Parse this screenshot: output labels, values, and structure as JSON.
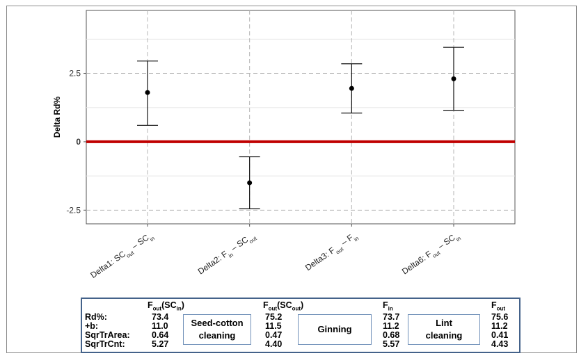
{
  "chart_data": {
    "type": "errorbar",
    "ylabel": "Delta Rd%",
    "ylim": [
      -3.0,
      4.8
    ],
    "yticks": [
      -2.5,
      0,
      2.5
    ],
    "ytick_labels": [
      "-2.5",
      "0",
      "2.5"
    ],
    "reference_line": {
      "value": 0,
      "label": "0",
      "color": "#c00000"
    },
    "grid": true,
    "categories": [
      {
        "main": "Delta1: SC",
        "s1": "out",
        "mid": " – SC",
        "s2": "in"
      },
      {
        "main": "Delta2: F",
        "s1": "in",
        "mid": " – SC",
        "s2": "out"
      },
      {
        "main": "Delta3: F",
        "s1": "out",
        "mid": " – F",
        "s2": "in"
      },
      {
        "main": "Delta6: F",
        "s1": "out",
        "mid": " – SC",
        "s2": "in"
      }
    ],
    "points": [
      {
        "mean": 1.8,
        "lower": 0.6,
        "upper": 2.95
      },
      {
        "mean": -1.5,
        "lower": -2.45,
        "upper": -0.55
      },
      {
        "mean": 1.95,
        "lower": 1.05,
        "upper": 2.85
      },
      {
        "mean": 2.3,
        "lower": 1.15,
        "upper": 3.45
      }
    ]
  },
  "table": {
    "columns": [
      {
        "main": "F",
        "sub": "out",
        "tail": "(SC",
        "tailsub": "in",
        "end": ")",
        "rd": "73.4",
        "b": "11.0",
        "area": "0.64",
        "cnt": "5.27"
      },
      {
        "main": "F",
        "sub": "out",
        "tail": "(SC",
        "tailsub": "out",
        "end": ")",
        "rd": "75.2",
        "b": "11.5",
        "area": "0.47",
        "cnt": "4.40"
      },
      {
        "main": "F",
        "sub": "in",
        "tail": "",
        "tailsub": "",
        "end": "",
        "rd": "73.7",
        "b": "11.2",
        "area": "0.68",
        "cnt": "5.57"
      },
      {
        "main": "F",
        "sub": "out",
        "tail": "",
        "tailsub": "",
        "end": "",
        "rd": "75.6",
        "b": "11.2",
        "area": "0.41",
        "cnt": "4.43"
      }
    ],
    "row_labels": [
      "Rd%:",
      "+b:",
      "SqrTrArea:",
      "SqrTrCnt:"
    ],
    "stages": [
      {
        "line1": "Seed-cotton",
        "line2": "cleaning"
      },
      {
        "line1": "Ginning",
        "line2": ""
      },
      {
        "line1": "Lint",
        "line2": "cleaning"
      }
    ]
  }
}
